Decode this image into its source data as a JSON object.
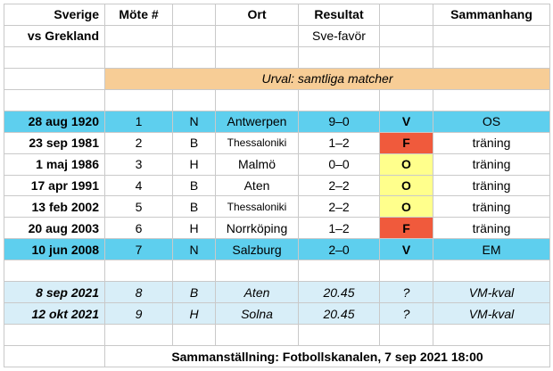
{
  "header": {
    "row1": [
      "Sverige",
      "Möte #",
      "Ort",
      "Resultat",
      "Sammanhang"
    ],
    "row2_left": "vs Grekland",
    "row2_result": "Sve-favör"
  },
  "filter_label": "Urval: samtliga matcher",
  "matches": [
    {
      "date": "28 aug 1920",
      "num": "1",
      "venue": "N",
      "place": "Antwerpen",
      "score": "9–0",
      "outcome": "V",
      "context": "OS"
    },
    {
      "date": "23 sep 1981",
      "num": "2",
      "venue": "B",
      "place": "Thessaloniki",
      "score": "1–2",
      "outcome": "F",
      "context": "träning"
    },
    {
      "date": "1 maj 1986",
      "num": "3",
      "venue": "H",
      "place": "Malmö",
      "score": "0–0",
      "outcome": "O",
      "context": "träning"
    },
    {
      "date": "17 apr 1991",
      "num": "4",
      "venue": "B",
      "place": "Aten",
      "score": "2–2",
      "outcome": "O",
      "context": "träning"
    },
    {
      "date": "13 feb 2002",
      "num": "5",
      "venue": "B",
      "place": "Thessaloniki",
      "score": "2–2",
      "outcome": "O",
      "context": "träning"
    },
    {
      "date": "20 aug 2003",
      "num": "6",
      "venue": "H",
      "place": "Norrköping",
      "score": "1–2",
      "outcome": "F",
      "context": "träning"
    },
    {
      "date": "10 jun 2008",
      "num": "7",
      "venue": "N",
      "place": "Salzburg",
      "score": "2–0",
      "outcome": "V",
      "context": "EM"
    }
  ],
  "upcoming": [
    {
      "date": "8 sep 2021",
      "num": "8",
      "venue": "B",
      "place": "Aten",
      "time": "20.45",
      "outcome": "?",
      "context": "VM-kval"
    },
    {
      "date": "12 okt 2021",
      "num": "9",
      "venue": "H",
      "place": "Solna",
      "time": "20.45",
      "outcome": "?",
      "context": "VM-kval"
    }
  ],
  "footer": "Sammanställning: Fotbollskanalen, 7 sep 2021 18:00",
  "colors": {
    "highlight_blue": "#5ecfee",
    "upcoming_blue": "#d8eef8",
    "filter_orange": "#f7cd96",
    "win_green": "#8fc63f",
    "loss_red": "#f05a3c",
    "draw_yellow": "#ffff8c"
  }
}
